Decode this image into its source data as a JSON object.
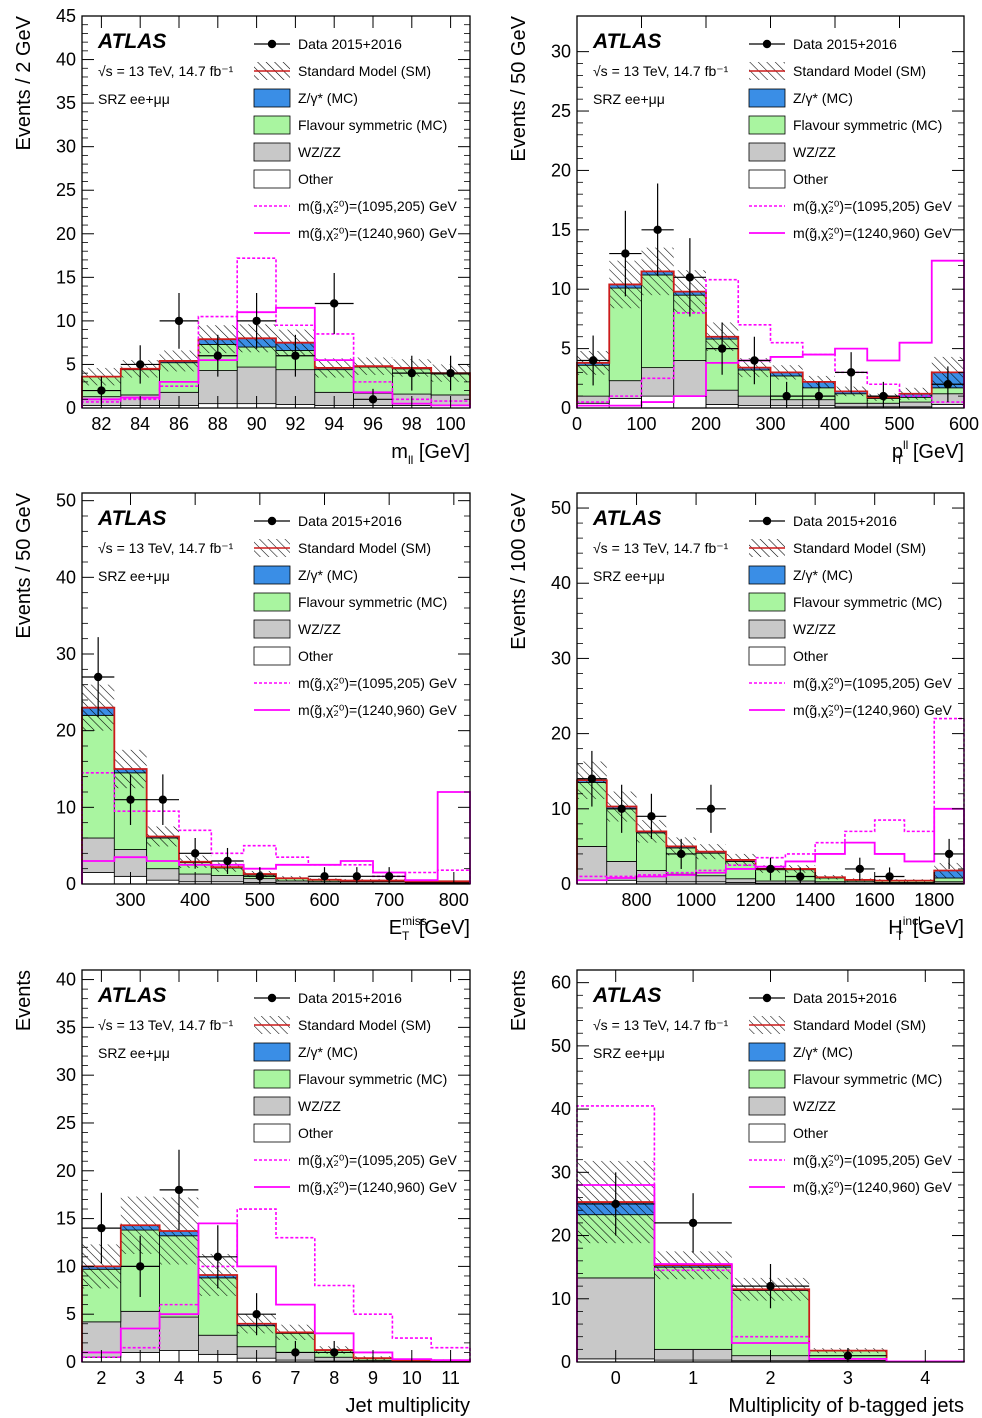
{
  "colors": {
    "zgamma": "#3a8ee6",
    "flavour": "#a9f5a0",
    "wzzz": "#c8c8c8",
    "other": "#ffffff",
    "sm_line": "#cc1b1b",
    "signal": "#ff00ff",
    "data": "#000000"
  },
  "legend": {
    "atlas": "ATLAS",
    "energy": "√s = 13 TeV, 14.7 fb⁻¹",
    "region": "SRZ ee+μμ",
    "data": "Data 2015+2016",
    "sm": "Standard Model (SM)",
    "zgamma": "Z/γ* (MC)",
    "flavour": "Flavour symmetric (MC)",
    "wzzz": "WZ/ZZ",
    "other": "Other",
    "sig1": "m(g̃,χ̃₂⁰)=(1095,205) GeV",
    "sig2": "m(g̃,χ̃₂⁰)=(1240,960) GeV"
  },
  "chart_data": [
    {
      "type": "histogram",
      "xlabel": "m_ll [GeV]",
      "ylabel": "Events / 2 GeV",
      "edges": [
        81,
        83,
        85,
        87,
        89,
        91,
        93,
        95,
        97,
        99,
        101
      ],
      "ylim": [
        0,
        45
      ],
      "yticks": [
        0,
        5,
        10,
        15,
        20,
        25,
        30,
        35,
        40,
        45
      ],
      "xticks": [
        82,
        84,
        86,
        88,
        90,
        92,
        94,
        96,
        98,
        100
      ],
      "other": [
        0.3,
        0.3,
        0.3,
        0.5,
        0.5,
        0.4,
        0.3,
        0.3,
        0.3,
        0.3
      ],
      "wzzz": [
        1.0,
        1.2,
        1.5,
        3.8,
        4.2,
        4.0,
        1.5,
        1.4,
        1.3,
        1.2
      ],
      "flavour": [
        2.3,
        2.9,
        3.4,
        3.0,
        2.3,
        2.2,
        2.6,
        3.0,
        2.9,
        2.4
      ],
      "zgamma": [
        0.0,
        0.1,
        0.2,
        0.6,
        1.0,
        0.9,
        0.2,
        0.1,
        0.1,
        0.1
      ],
      "uncertainty": [
        1.0,
        1.0,
        1.2,
        1.6,
        1.6,
        1.5,
        1.1,
        1.0,
        1.0,
        1.0
      ],
      "sig1": [
        0.7,
        1.0,
        2.5,
        10.5,
        17.2,
        9.5,
        8.5,
        3.0,
        1.0,
        0.8
      ],
      "sig2": [
        1.0,
        1.2,
        3.0,
        5.5,
        11.0,
        11.5,
        5.5,
        1.8,
        0.5,
        0.3
      ],
      "data": [
        {
          "x": 82,
          "y": 2,
          "e": 1.6
        },
        {
          "x": 84,
          "y": 5,
          "e": 2.2
        },
        {
          "x": 86,
          "y": 10,
          "e": 3.2
        },
        {
          "x": 88,
          "y": 6,
          "e": 2.4
        },
        {
          "x": 90,
          "y": 10,
          "e": 3.2
        },
        {
          "x": 92,
          "y": 6,
          "e": 2.4
        },
        {
          "x": 94,
          "y": 12,
          "e": 3.5
        },
        {
          "x": 96,
          "y": 1,
          "e": 1.2
        },
        {
          "x": 98,
          "y": 4,
          "e": 2.0
        },
        {
          "x": 100,
          "y": 4,
          "e": 2.0
        }
      ]
    },
    {
      "type": "histogram",
      "xlabel": "p_T^ll [GeV]",
      "ylabel": "Events / 50 GeV",
      "edges": [
        0,
        50,
        100,
        150,
        200,
        250,
        300,
        350,
        400,
        450,
        500,
        550,
        600
      ],
      "ylim": [
        0,
        33
      ],
      "yticks": [
        0,
        5,
        10,
        15,
        20,
        25,
        30
      ],
      "xticks": [
        0,
        100,
        200,
        300,
        400,
        500,
        600
      ],
      "other": [
        0.4,
        0.8,
        1.0,
        1.0,
        0.3,
        0.2,
        0.2,
        0.2,
        0.1,
        0.1,
        0.1,
        0.3
      ],
      "wzzz": [
        0.6,
        1.5,
        2.4,
        3.0,
        1.2,
        0.8,
        0.5,
        0.5,
        0.3,
        0.3,
        0.4,
        0.9
      ],
      "flavour": [
        2.6,
        7.8,
        7.8,
        5.5,
        4.3,
        2.2,
        2.0,
        1.0,
        0.8,
        0.4,
        0.4,
        0.5
      ],
      "zgamma": [
        0.2,
        0.3,
        0.3,
        0.3,
        0.2,
        0.2,
        0.3,
        0.5,
        0.2,
        0.1,
        0.3,
        1.3
      ],
      "uncertainty": [
        1.0,
        2.0,
        2.0,
        1.8,
        1.2,
        0.8,
        0.6,
        0.5,
        0.4,
        0.3,
        0.5,
        1.3
      ],
      "sig1": [
        0.5,
        1.0,
        2.5,
        8.0,
        10.8,
        7.0,
        5.5,
        4.5,
        3.0,
        2.0,
        1.0,
        0.5
      ],
      "sig2": [
        0.2,
        0.2,
        0.5,
        1.0,
        3.8,
        4.0,
        4.3,
        4.5,
        5.0,
        4.0,
        5.5,
        12.4
      ],
      "data": [
        {
          "x": 25,
          "y": 4,
          "e": 2.1
        },
        {
          "x": 75,
          "y": 13,
          "e": 3.6
        },
        {
          "x": 125,
          "y": 15,
          "e": 3.9
        },
        {
          "x": 175,
          "y": 11,
          "e": 3.3
        },
        {
          "x": 225,
          "y": 5,
          "e": 2.2
        },
        {
          "x": 275,
          "y": 4,
          "e": 2.0
        },
        {
          "x": 325,
          "y": 1,
          "e": 1.2
        },
        {
          "x": 375,
          "y": 1,
          "e": 1.2
        },
        {
          "x": 425,
          "y": 3,
          "e": 1.7
        },
        {
          "x": 475,
          "y": 1,
          "e": 1.2
        },
        {
          "x": 575,
          "y": 2,
          "e": 1.5
        }
      ]
    },
    {
      "type": "histogram",
      "xlabel": "E_T^miss [GeV]",
      "ylabel": "Events / 50 GeV",
      "edges": [
        225,
        275,
        325,
        375,
        425,
        475,
        525,
        575,
        625,
        675,
        725,
        775,
        825
      ],
      "ylim": [
        0,
        51
      ],
      "yticks": [
        0,
        10,
        20,
        30,
        40,
        50
      ],
      "xticks": [
        300,
        400,
        500,
        600,
        700,
        800
      ],
      "other": [
        1.5,
        1.0,
        0.5,
        0.3,
        0.3,
        0.2,
        0.1,
        0.1,
        0.1,
        0.1,
        0.1,
        0.1
      ],
      "wzzz": [
        4.5,
        3.5,
        1.5,
        1.0,
        0.8,
        0.5,
        0.3,
        0.2,
        0.2,
        0.2,
        0.1,
        0.1
      ],
      "flavour": [
        16.0,
        10.0,
        4.0,
        1.5,
        1.0,
        0.5,
        0.3,
        0.2,
        0.1,
        0.1,
        0.1,
        0.1
      ],
      "zgamma": [
        1.0,
        0.5,
        0.2,
        0.1,
        0.1,
        0.1,
        0.05,
        0.05,
        0.05,
        0.05,
        0.05,
        0.05
      ],
      "uncertainty": [
        3.0,
        2.5,
        1.3,
        0.8,
        0.6,
        0.4,
        0.3,
        0.2,
        0.2,
        0.2,
        0.1,
        0.1
      ],
      "sig1": [
        14.5,
        9.5,
        9.5,
        7.0,
        4.0,
        5.0,
        3.5,
        2.5,
        2.5,
        1.0,
        1.5,
        1.8
      ],
      "sig2": [
        3.0,
        3.5,
        3.0,
        2.5,
        2.5,
        2.0,
        2.5,
        2.5,
        3.0,
        1.5,
        0.5,
        12.0
      ],
      "data": [
        {
          "x": 250,
          "y": 27,
          "e": 5.2
        },
        {
          "x": 300,
          "y": 11,
          "e": 3.3
        },
        {
          "x": 350,
          "y": 11,
          "e": 3.3
        },
        {
          "x": 400,
          "y": 4,
          "e": 2.0
        },
        {
          "x": 450,
          "y": 3,
          "e": 1.7
        },
        {
          "x": 500,
          "y": 1,
          "e": 1.2
        },
        {
          "x": 600,
          "y": 1,
          "e": 1.2
        },
        {
          "x": 650,
          "y": 1,
          "e": 1.2
        },
        {
          "x": 700,
          "y": 1,
          "e": 1.2
        }
      ]
    },
    {
      "type": "histogram",
      "xlabel": "H_T^incl [GeV]",
      "ylabel": "Events / 100 GeV",
      "edges": [
        600,
        700,
        800,
        900,
        1000,
        1100,
        1200,
        1300,
        1400,
        1500,
        1600,
        1700,
        1800,
        1900
      ],
      "ylim": [
        0,
        52
      ],
      "yticks": [
        0,
        10,
        20,
        30,
        40,
        50
      ],
      "xticks": [
        800,
        1000,
        1200,
        1400,
        1600,
        1800
      ],
      "other": [
        0.5,
        0.5,
        0.3,
        0.3,
        0.3,
        0.2,
        0.1,
        0.1,
        0.1,
        0.1,
        0.1,
        0.1,
        0.1
      ],
      "wzzz": [
        4.5,
        2.5,
        1.5,
        1.0,
        0.8,
        0.5,
        0.3,
        0.3,
        0.2,
        0.2,
        0.1,
        0.1,
        0.2
      ],
      "flavour": [
        8.5,
        7.0,
        5.0,
        3.5,
        3.0,
        2.3,
        1.5,
        1.5,
        0.5,
        0.2,
        0.2,
        0.2,
        0.5
      ],
      "zgamma": [
        0.3,
        0.3,
        0.2,
        0.2,
        0.2,
        0.2,
        0.1,
        0.1,
        0.1,
        0.05,
        0.05,
        0.05,
        1.0
      ],
      "uncertainty": [
        2.5,
        2.0,
        1.5,
        1.2,
        1.0,
        0.8,
        0.5,
        0.5,
        0.3,
        0.2,
        0.2,
        0.2,
        1.0
      ],
      "sig1": [
        1.0,
        1.0,
        1.2,
        1.5,
        1.8,
        2.5,
        3.5,
        4.0,
        5.5,
        7.0,
        8.5,
        7.0,
        22.0
      ],
      "sig2": [
        0.5,
        0.8,
        1.0,
        1.2,
        1.5,
        2.0,
        2.3,
        3.0,
        4.0,
        5.5,
        4.0,
        3.0,
        10.0
      ],
      "data": [
        {
          "x": 650,
          "y": 14,
          "e": 3.7
        },
        {
          "x": 750,
          "y": 10,
          "e": 3.2
        },
        {
          "x": 850,
          "y": 9,
          "e": 3.0
        },
        {
          "x": 950,
          "y": 4,
          "e": 2.0
        },
        {
          "x": 1050,
          "y": 10,
          "e": 3.2
        },
        {
          "x": 1250,
          "y": 2,
          "e": 1.5
        },
        {
          "x": 1350,
          "y": 1,
          "e": 1.2
        },
        {
          "x": 1550,
          "y": 2,
          "e": 1.5
        },
        {
          "x": 1650,
          "y": 1,
          "e": 1.2
        },
        {
          "x": 1850,
          "y": 4,
          "e": 2.0
        }
      ]
    },
    {
      "type": "histogram",
      "xlabel": "Jet multiplicity",
      "ylabel": "Events",
      "edges": [
        1.5,
        2.5,
        3.5,
        4.5,
        5.5,
        6.5,
        7.5,
        8.5,
        9.5,
        10.5,
        11.5
      ],
      "ylim": [
        0,
        41
      ],
      "yticks": [
        0,
        5,
        10,
        15,
        20,
        25,
        30,
        35,
        40
      ],
      "xticks": [
        2,
        3,
        4,
        5,
        6,
        7,
        8,
        9,
        10,
        11
      ],
      "other": [
        0.5,
        1.0,
        1.2,
        0.8,
        0.4,
        0.2,
        0.1,
        0.05,
        0.05,
        0.05
      ],
      "wzzz": [
        3.7,
        4.3,
        3.5,
        2.0,
        1.2,
        0.8,
        0.4,
        0.1,
        0.05,
        0.05
      ],
      "flavour": [
        5.5,
        8.5,
        8.5,
        6.0,
        2.2,
        2.0,
        0.7,
        0.2,
        0.05,
        0.05
      ],
      "zgamma": [
        0.3,
        0.5,
        0.5,
        0.3,
        0.2,
        0.1,
        0.05,
        0.05,
        0.02,
        0.02
      ],
      "uncertainty": [
        2.3,
        3.0,
        3.5,
        2.2,
        1.0,
        0.8,
        0.4,
        0.2,
        0.1,
        0.1
      ],
      "sig1": [
        0.5,
        1.5,
        6.0,
        10.0,
        16.0,
        13.0,
        8.0,
        5.0,
        2.5,
        1.5
      ],
      "sig2": [
        1.0,
        3.5,
        5.0,
        14.5,
        10.0,
        6.0,
        3.0,
        1.0,
        0.3,
        0.2
      ],
      "data": [
        {
          "x": 2,
          "y": 14,
          "e": 3.7
        },
        {
          "x": 3,
          "y": 10,
          "e": 3.2
        },
        {
          "x": 4,
          "y": 18,
          "e": 4.2
        },
        {
          "x": 5,
          "y": 11,
          "e": 3.3
        },
        {
          "x": 6,
          "y": 5,
          "e": 2.2
        },
        {
          "x": 7,
          "y": 1,
          "e": 1.2
        },
        {
          "x": 8,
          "y": 1,
          "e": 1.2
        }
      ]
    },
    {
      "type": "histogram",
      "xlabel": "Multiplicity of b-tagged jets",
      "ylabel": "Events",
      "edges": [
        -0.5,
        0.5,
        1.5,
        2.5,
        3.5,
        4.5
      ],
      "ylim": [
        0,
        62
      ],
      "yticks": [
        0,
        10,
        20,
        30,
        40,
        50,
        60
      ],
      "xticks": [
        0,
        1,
        2,
        3,
        4
      ],
      "other": [
        0.5,
        0.3,
        0.2,
        0.05,
        0.0
      ],
      "wzzz": [
        12.8,
        1.7,
        0.8,
        0.2,
        0.0
      ],
      "flavour": [
        10.0,
        13.0,
        10.3,
        1.5,
        0.1
      ],
      "zgamma": [
        2.0,
        0.3,
        0.2,
        0.05,
        0.0
      ],
      "uncertainty": [
        6.5,
        2.2,
        1.8,
        0.4,
        0.0
      ],
      "sig1": [
        40.5,
        14.5,
        4.0,
        0.5,
        0.1
      ],
      "sig2": [
        28.0,
        15.5,
        3.0,
        0.5,
        0.1
      ],
      "data": [
        {
          "x": 0,
          "y": 25,
          "e": 5.0
        },
        {
          "x": 1,
          "y": 22,
          "e": 4.7
        },
        {
          "x": 2,
          "y": 12,
          "e": 3.5
        },
        {
          "x": 3,
          "y": 1,
          "e": 1.2
        }
      ]
    }
  ]
}
